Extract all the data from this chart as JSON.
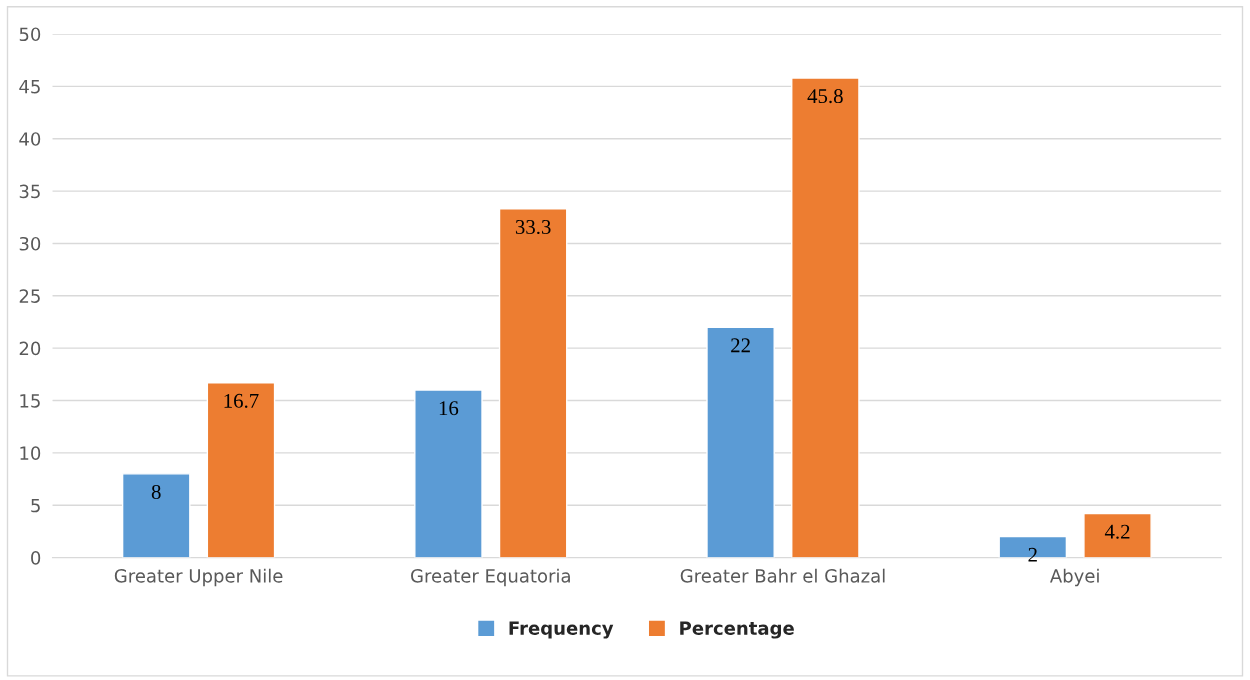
{
  "chart_data": {
    "type": "bar",
    "categories": [
      "Greater Upper Nile",
      "Greater Equatoria",
      "Greater Bahr el Ghazal",
      "Abyei"
    ],
    "series": [
      {
        "name": "Frequency",
        "color": "#5b9bd5",
        "values": [
          8,
          16,
          22,
          2
        ]
      },
      {
        "name": "Percentage",
        "color": "#ed7d31",
        "values": [
          16.7,
          33.3,
          45.8,
          4.2
        ]
      }
    ],
    "ylim": [
      0,
      50
    ],
    "yticks": [
      0,
      5,
      10,
      15,
      20,
      25,
      30,
      35,
      40,
      45,
      50
    ],
    "grid": "y",
    "legend": "bottom",
    "data_labels": true
  }
}
